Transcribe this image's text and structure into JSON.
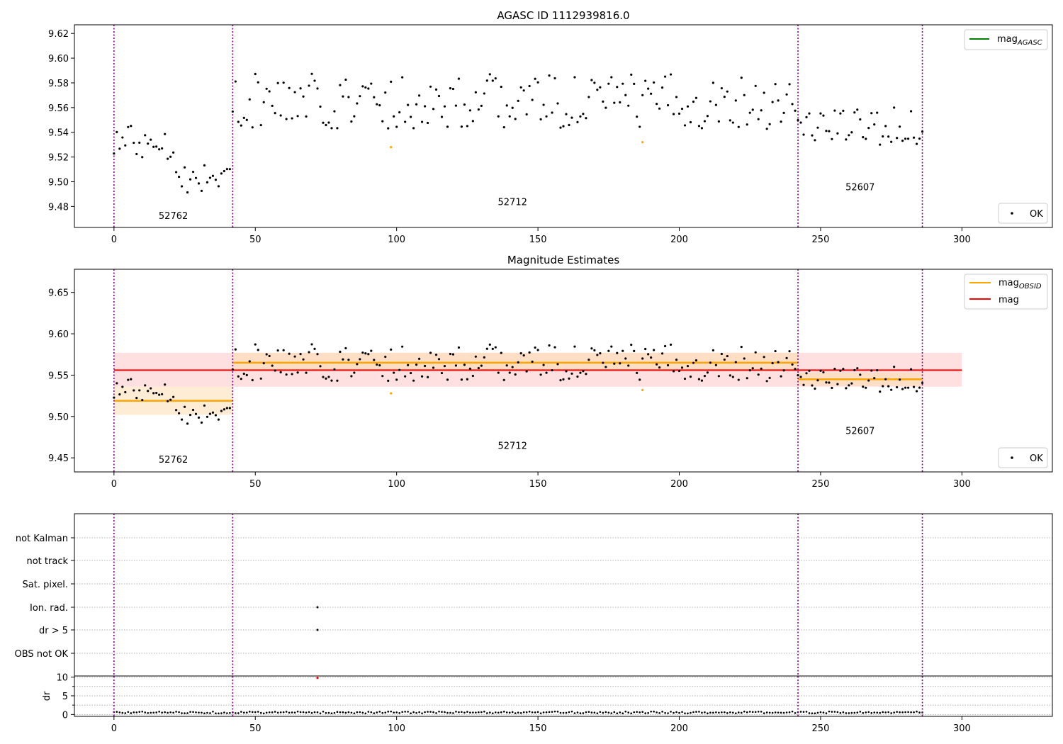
{
  "colors": {
    "points_ok": "#000000",
    "points_highlight": "#ffa500",
    "mag_agasc_line": "#008000",
    "mag_obsid_line": "#ffa500",
    "mag_line": "#ff0000",
    "mag_band": "#ffcccc",
    "obsid_band": "#ffdcb0",
    "divider": "#800080",
    "grid": "#b0b0b0",
    "dr_flag": "#ff0000"
  },
  "chart_data": [
    {
      "type": "scatter",
      "title": "AGASC ID 1112939816.0",
      "xlabel": "",
      "ylabel": "",
      "xlim": [
        -14,
        332
      ],
      "ylim": [
        9.463,
        9.627
      ],
      "xticks": [
        0,
        50,
        100,
        150,
        200,
        250,
        300
      ],
      "xtick_labels": [
        "0",
        "50",
        "100",
        "150",
        "200",
        "250",
        "300"
      ],
      "yticks": [
        9.48,
        9.5,
        9.52,
        9.54,
        9.56,
        9.58,
        9.6,
        9.62
      ],
      "ytick_labels": [
        "9.48",
        "9.50",
        "9.52",
        "9.54",
        "9.56",
        "9.58",
        "9.60",
        "9.62"
      ],
      "obsid_boundaries": [
        0,
        42,
        242,
        286
      ],
      "obsid_labels": [
        {
          "x": 21,
          "y": 9.47,
          "text": "52762"
        },
        {
          "x": 141,
          "y": 9.481,
          "text": "52712"
        },
        {
          "x": 264,
          "y": 9.493,
          "text": "52607"
        }
      ],
      "legends": [
        {
          "position": "top-right",
          "entries": [
            {
              "label": "mag",
              "sub": "AGASC",
              "style": "line",
              "color_key": "mag_agasc_line"
            }
          ]
        },
        {
          "position": "bottom-right",
          "entries": [
            {
              "label": "OK",
              "style": "dot",
              "color_key": "points_ok"
            }
          ]
        }
      ],
      "highlight_points": [
        [
          98,
          9.528
        ],
        [
          187,
          9.532
        ]
      ]
    },
    {
      "type": "scatter",
      "title": "Magnitude Estimates",
      "xlabel": "",
      "ylabel": "",
      "xlim": [
        -14,
        332
      ],
      "ylim": [
        9.433,
        9.678
      ],
      "xticks": [
        0,
        50,
        100,
        150,
        200,
        250,
        300
      ],
      "xtick_labels": [
        "0",
        "50",
        "100",
        "150",
        "200",
        "250",
        "300"
      ],
      "yticks": [
        9.45,
        9.5,
        9.55,
        9.6,
        9.65
      ],
      "ytick_labels": [
        "9.45",
        "9.50",
        "9.55",
        "9.60",
        "9.65"
      ],
      "obsid_boundaries": [
        0,
        42,
        242,
        286
      ],
      "obsid_labels": [
        {
          "x": 21,
          "y": 9.444,
          "text": "52762"
        },
        {
          "x": 141,
          "y": 9.461,
          "text": "52712"
        },
        {
          "x": 264,
          "y": 9.479,
          "text": "52607"
        }
      ],
      "mag": {
        "value": 9.556,
        "band": [
          9.536,
          9.577
        ],
        "x_range": [
          0,
          300
        ]
      },
      "mag_obsid": [
        {
          "x_range": [
            0,
            42
          ],
          "value": 9.519,
          "band": [
            9.502,
            9.536
          ]
        },
        {
          "x_range": [
            42,
            242
          ],
          "value": 9.565,
          "band": [
            9.555,
            9.577
          ]
        },
        {
          "x_range": [
            242,
            286
          ],
          "value": 9.545,
          "band": [
            9.537,
            9.553
          ]
        }
      ],
      "legends": [
        {
          "position": "top-right",
          "entries": [
            {
              "label": "mag",
              "sub": "OBSID",
              "style": "line",
              "color_key": "mag_obsid_line"
            },
            {
              "label": "mag",
              "sub": "",
              "style": "line",
              "color_key": "mag_line"
            }
          ]
        },
        {
          "position": "bottom-right",
          "entries": [
            {
              "label": "OK",
              "style": "dot",
              "color_key": "points_ok"
            }
          ]
        }
      ],
      "highlight_points": [
        [
          98,
          9.528
        ],
        [
          187,
          9.532
        ]
      ]
    },
    {
      "type": "scatter",
      "title": "",
      "xlabel": "",
      "ylabel": "",
      "categories": [
        "not Kalman",
        "not track",
        "Sat. pixel.",
        "Ion. rad.",
        "dr > 5",
        "OBS not OK"
      ],
      "flags": [
        {
          "category": "Ion. rad.",
          "x": 72
        },
        {
          "category": "dr > 5",
          "x": 72
        }
      ],
      "obsid_boundaries": [
        0,
        42,
        242,
        286
      ]
    },
    {
      "type": "scatter",
      "title": "",
      "xlabel": "",
      "ylabel": "dr",
      "xlim": [
        -14,
        332
      ],
      "ylim": [
        -0.5,
        10.3
      ],
      "xticks": [
        0,
        50,
        100,
        150,
        200,
        250,
        300
      ],
      "xtick_labels": [
        "0",
        "50",
        "100",
        "150",
        "200",
        "250",
        "300"
      ],
      "yticks": [
        0,
        5,
        10
      ],
      "ytick_labels": [
        "0",
        "5",
        "10"
      ],
      "obsid_boundaries": [
        0,
        42,
        242,
        286
      ],
      "flag_points": [
        [
          72,
          9.8
        ]
      ]
    }
  ]
}
